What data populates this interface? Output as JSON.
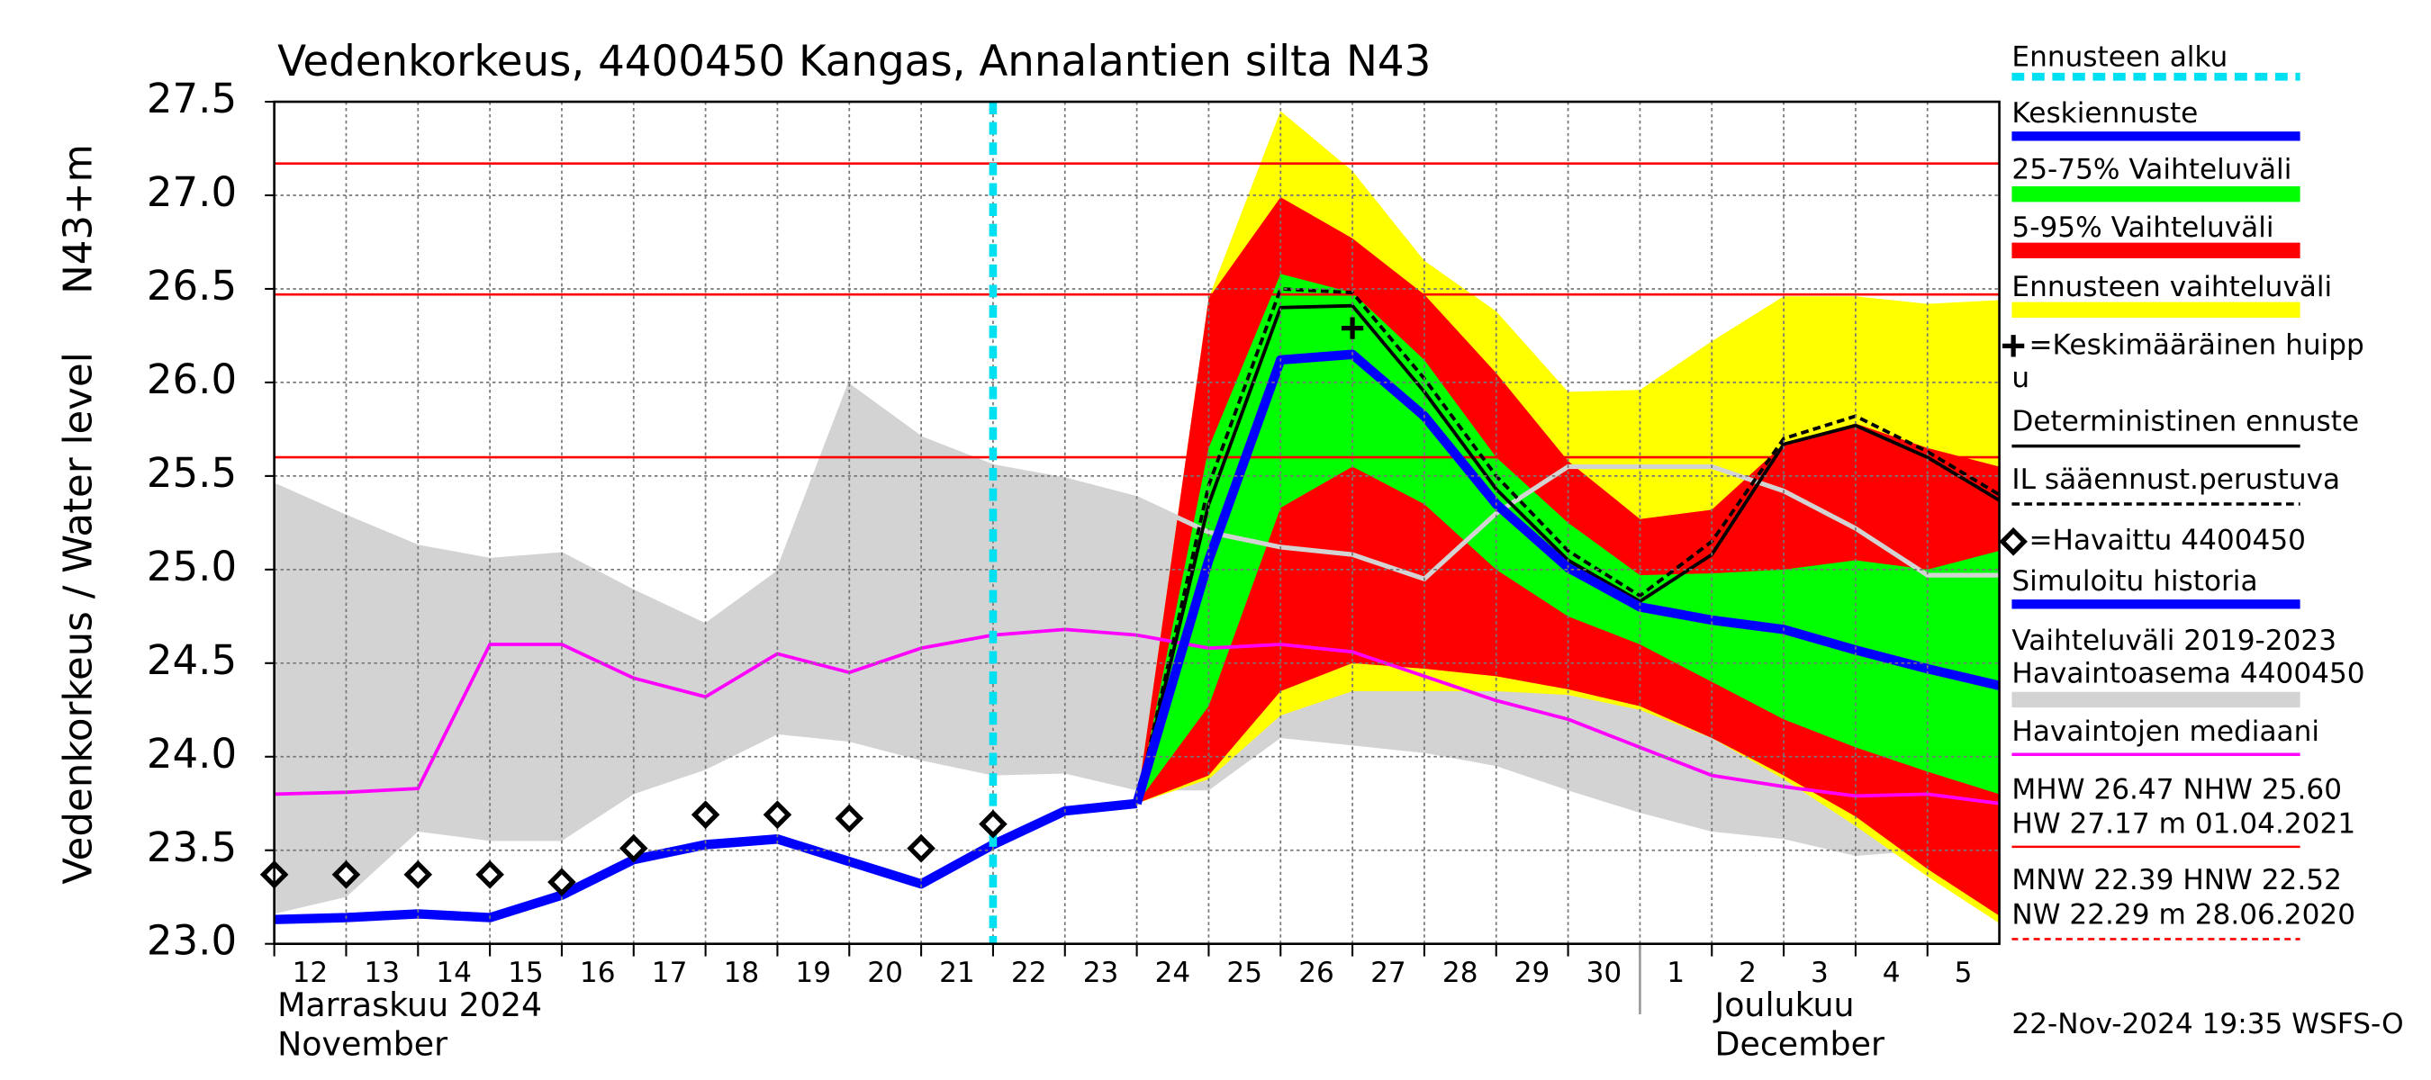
{
  "chart_data": {
    "type": "line",
    "title": "Vedenkorkeus, 4400450 Kangas, Annalantien silta N43",
    "ylabel": "Vedenkorkeus / Water level",
    "yunit": "N43+m",
    "ylim": [
      23.0,
      27.5
    ],
    "yticks": [
      {
        "value": 23.0,
        "label": "23.0"
      },
      {
        "value": 23.5,
        "label": "23.5"
      },
      {
        "value": 24.0,
        "label": "24.0"
      },
      {
        "value": 24.5,
        "label": "24.5"
      },
      {
        "value": 25.0,
        "label": "25.0"
      },
      {
        "value": 25.5,
        "label": "25.5"
      },
      {
        "value": 26.0,
        "label": "26.0"
      },
      {
        "value": 26.5,
        "label": "26.5"
      },
      {
        "value": 27.0,
        "label": "27.0"
      },
      {
        "value": 27.5,
        "label": "27.5"
      }
    ],
    "xlim": [
      0,
      24
    ],
    "xticks": [
      {
        "value": 0,
        "label": "12"
      },
      {
        "value": 1,
        "label": "13"
      },
      {
        "value": 2,
        "label": "14"
      },
      {
        "value": 3,
        "label": "15"
      },
      {
        "value": 4,
        "label": "16"
      },
      {
        "value": 5,
        "label": "17"
      },
      {
        "value": 6,
        "label": "18"
      },
      {
        "value": 7,
        "label": "19"
      },
      {
        "value": 8,
        "label": "20"
      },
      {
        "value": 9,
        "label": "21"
      },
      {
        "value": 10,
        "label": "22"
      },
      {
        "value": 11,
        "label": "23"
      },
      {
        "value": 12,
        "label": "24"
      },
      {
        "value": 13,
        "label": "25"
      },
      {
        "value": 14,
        "label": "26"
      },
      {
        "value": 15,
        "label": "27"
      },
      {
        "value": 16,
        "label": "28"
      },
      {
        "value": 17,
        "label": "29"
      },
      {
        "value": 18,
        "label": "30"
      },
      {
        "value": 19,
        "label": "1"
      },
      {
        "value": 20,
        "label": "2"
      },
      {
        "value": 21,
        "label": "3"
      },
      {
        "value": 22,
        "label": "4"
      },
      {
        "value": 23,
        "label": "5"
      }
    ],
    "months": [
      {
        "x": 0,
        "lines": [
          "Marraskuu 2024",
          "November"
        ]
      },
      {
        "x": 19,
        "lines": [
          "Joulukuu",
          "December"
        ]
      }
    ],
    "grid": true,
    "x": [
      0,
      1,
      2,
      3,
      4,
      5,
      6,
      7,
      8,
      9,
      10,
      11,
      12,
      13,
      14,
      15,
      16,
      17,
      18,
      19,
      20,
      21,
      22,
      23,
      24
    ],
    "forecast_start": {
      "name": "Ennusteen alku",
      "x": 10,
      "color": "#00e0f0"
    },
    "series": [
      {
        "name": "Keskiennuste",
        "kind": "line",
        "color": "#0000ff",
        "thick": true,
        "values": [
          null,
          null,
          null,
          null,
          null,
          null,
          null,
          null,
          null,
          null,
          null,
          null,
          23.75,
          25.05,
          26.12,
          26.15,
          25.82,
          25.35,
          25.01,
          24.8,
          24.73,
          24.68,
          24.57,
          24.47,
          24.38
        ]
      },
      {
        "name": "25-75% Vaihteluväli",
        "kind": "band",
        "color": "#00ff00",
        "low": [
          null,
          null,
          null,
          null,
          null,
          null,
          null,
          null,
          null,
          null,
          null,
          null,
          23.75,
          24.27,
          25.33,
          25.55,
          25.35,
          25.0,
          24.75,
          24.6,
          24.4,
          24.2,
          24.05,
          23.92,
          23.8
        ],
        "high": [
          null,
          null,
          null,
          null,
          null,
          null,
          null,
          null,
          null,
          null,
          null,
          null,
          23.75,
          25.65,
          26.58,
          26.48,
          26.12,
          25.6,
          25.25,
          24.97,
          24.98,
          25.0,
          25.05,
          25.0,
          25.1
        ]
      },
      {
        "name": "5-95% Vaihteluväli",
        "kind": "band",
        "color": "#ff0000",
        "low": [
          null,
          null,
          null,
          null,
          null,
          null,
          null,
          null,
          null,
          null,
          null,
          null,
          23.75,
          23.9,
          24.35,
          24.5,
          24.47,
          24.43,
          24.36,
          24.27,
          24.1,
          23.9,
          23.68,
          23.4,
          23.15
        ],
        "high": [
          null,
          null,
          null,
          null,
          null,
          null,
          null,
          null,
          null,
          null,
          null,
          null,
          23.75,
          26.45,
          26.99,
          26.77,
          26.47,
          26.05,
          25.58,
          25.27,
          25.32,
          25.67,
          25.78,
          25.65,
          25.55
        ]
      },
      {
        "name": "Ennusteen vaihteluväli",
        "kind": "band",
        "color": "#ffff00",
        "low": [
          null,
          null,
          null,
          null,
          null,
          null,
          null,
          null,
          null,
          null,
          null,
          null,
          23.75,
          23.88,
          24.22,
          24.35,
          24.35,
          24.35,
          24.33,
          24.25,
          24.1,
          23.88,
          23.63,
          23.36,
          23.11
        ],
        "high": [
          null,
          null,
          null,
          null,
          null,
          null,
          null,
          null,
          null,
          null,
          null,
          null,
          23.75,
          26.45,
          27.45,
          27.13,
          26.65,
          26.38,
          25.95,
          25.96,
          26.22,
          26.46,
          26.46,
          26.42,
          26.44
        ]
      },
      {
        "name": [
          "=Keskimääräinen huipp",
          "u"
        ],
        "kind": "peak",
        "color": "#000000",
        "x": 15,
        "value": 26.29
      },
      {
        "name": "Deterministinen ennuste",
        "kind": "line",
        "color": "#000000",
        "values": [
          null,
          null,
          null,
          null,
          null,
          null,
          null,
          null,
          null,
          null,
          null,
          null,
          23.75,
          25.35,
          26.4,
          26.41,
          25.95,
          25.43,
          25.05,
          24.83,
          25.08,
          25.67,
          25.77,
          25.6,
          25.37
        ]
      },
      {
        "name": "IL sääennust.perustuva",
        "kind": "line",
        "color": "#000000",
        "dash": true,
        "values": [
          null,
          null,
          null,
          null,
          null,
          null,
          null,
          null,
          null,
          null,
          null,
          null,
          23.75,
          25.45,
          26.5,
          26.48,
          26.02,
          25.5,
          25.1,
          24.86,
          25.15,
          25.7,
          25.82,
          25.63,
          25.4
        ]
      },
      {
        "name": "=Havaittu 4400450",
        "kind": "markers",
        "color": "#000000",
        "values": [
          23.37,
          23.37,
          23.37,
          23.37,
          23.33,
          23.51,
          23.69,
          23.69,
          23.67,
          23.51,
          23.64,
          null,
          null,
          null,
          null,
          null,
          null,
          null,
          null,
          null,
          null,
          null,
          null,
          null,
          null
        ]
      },
      {
        "name": "Simuloitu historia",
        "kind": "line",
        "color": "#0000ff",
        "thick": true,
        "values": [
          23.13,
          23.14,
          23.16,
          23.14,
          23.26,
          23.45,
          23.53,
          23.56,
          23.44,
          23.32,
          23.53,
          23.71,
          23.75,
          null,
          null,
          null,
          null,
          null,
          null,
          null,
          null,
          null,
          null,
          null,
          null
        ]
      },
      {
        "name": [
          "Vaihteluväli 2019-2023",
          " Havaintoasema 4400450"
        ],
        "kind": "band",
        "color": "#d3d3d3",
        "edge": true,
        "low": [
          23.16,
          23.25,
          23.6,
          23.55,
          23.55,
          23.8,
          23.93,
          24.12,
          24.08,
          23.98,
          23.9,
          23.91,
          23.82,
          23.82,
          24.1,
          24.06,
          24.02,
          23.95,
          23.82,
          23.7,
          23.6,
          23.56,
          23.47,
          23.5,
          23.36
        ],
        "high": [
          25.45,
          25.28,
          25.12,
          25.05,
          25.08,
          24.88,
          24.7,
          24.98,
          25.98,
          25.7,
          25.55,
          25.48,
          25.38,
          25.2,
          25.12,
          25.08,
          24.95,
          25.3,
          25.55,
          25.55,
          25.55,
          25.42,
          25.22,
          24.97,
          24.97
        ]
      },
      {
        "name": "Havaintojen mediaani",
        "kind": "line",
        "color": "#ff00ff",
        "values": [
          23.8,
          23.81,
          23.83,
          24.6,
          24.6,
          24.42,
          24.32,
          24.55,
          24.45,
          24.58,
          24.65,
          24.68,
          24.65,
          24.58,
          24.6,
          24.56,
          24.43,
          24.3,
          24.2,
          24.05,
          23.9,
          23.84,
          23.79,
          23.8,
          23.75
        ]
      }
    ],
    "hlines": [
      27.17,
      26.47,
      25.6
    ],
    "hline_color": "#ff0000",
    "stats": [
      {
        "lines": [
          "MHW  26.47 NHW  25.60",
          "HW  27.17 m 01.04.2021"
        ],
        "color": "#ff0000",
        "dash": false
      },
      {
        "lines": [
          "MNW  22.39 HNW  22.52",
          "NW  22.29 m 28.06.2020"
        ],
        "color": "#ff0000",
        "dash": true
      }
    ],
    "timestamp": "22-Nov-2024 19:35 WSFS-O"
  }
}
